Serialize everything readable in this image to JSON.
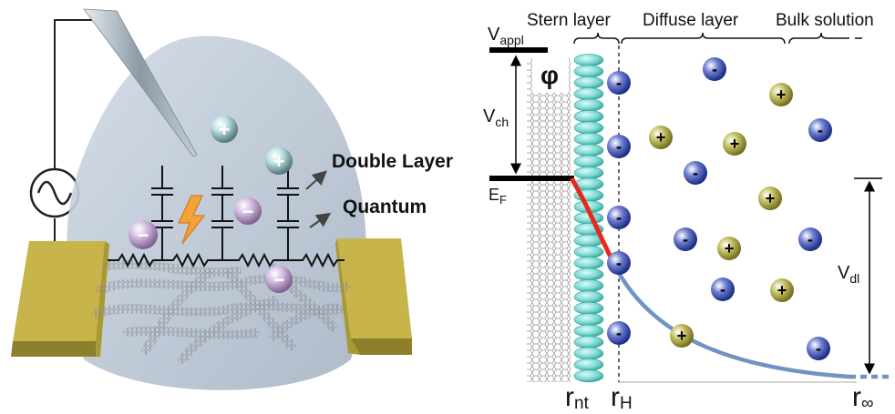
{
  "left_panel": {
    "label_double_layer": "Double Layer",
    "label_quantum": "Quantum",
    "ion_plus": "+",
    "ion_minus": "−"
  },
  "right_panel": {
    "region_stern": "Stern layer",
    "region_diffuse": "Diffuse layer",
    "region_bulk": "Bulk solution",
    "phi_symbol": "φ",
    "v_appl_main": "V",
    "v_appl_sub": "appl",
    "v_ch_main": "V",
    "v_ch_sub": "ch",
    "e_f_main": "E",
    "e_f_sub": "F",
    "v_dl_main": "V",
    "v_dl_sub": "dl",
    "r_nt_main": "r",
    "r_nt_sub": "nt",
    "r_h_main": "r",
    "r_h_sub": "H",
    "r_inf_main": "r",
    "r_inf_sub": "∞",
    "ion_minus": "-",
    "ion_plus": "+"
  },
  "colors": {
    "droplet": "#b9c6d6",
    "electrode": "#c9b64a",
    "anion": "#2c47a8",
    "cation": "#a29c3a",
    "stern_ellipse": "#6fd6cf",
    "potential_red": "#e8281e",
    "potential_blue": "#6f93c3"
  }
}
